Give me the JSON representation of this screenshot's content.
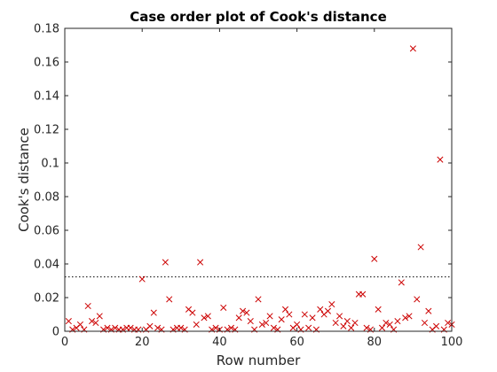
{
  "chart_data": {
    "type": "scatter",
    "title": "Case order plot of Cook's distance",
    "xlabel": "Row number",
    "ylabel": "Cook's distance",
    "xlim": [
      0,
      100
    ],
    "ylim": [
      0,
      0.18
    ],
    "xticks": [
      "0",
      "20",
      "40",
      "60",
      "80",
      "100"
    ],
    "yticks": [
      "0",
      "0.02",
      "0.04",
      "0.06",
      "0.08",
      "0.1",
      "0.12",
      "0.14",
      "0.16",
      "0.18"
    ],
    "grid": false,
    "marker": "x",
    "marker_color": "#cc0000",
    "threshold": 0.0323,
    "threshold_style": "dotted",
    "x": [
      1,
      2,
      3,
      4,
      5,
      6,
      7,
      8,
      9,
      10,
      11,
      12,
      13,
      14,
      15,
      16,
      17,
      18,
      19,
      20,
      21,
      22,
      23,
      24,
      25,
      26,
      27,
      28,
      29,
      30,
      31,
      32,
      33,
      34,
      35,
      36,
      37,
      38,
      39,
      40,
      41,
      42,
      43,
      44,
      45,
      46,
      47,
      48,
      49,
      50,
      51,
      52,
      53,
      54,
      55,
      56,
      57,
      58,
      59,
      60,
      61,
      62,
      63,
      64,
      65,
      66,
      67,
      68,
      69,
      70,
      71,
      72,
      73,
      74,
      75,
      76,
      77,
      78,
      79,
      80,
      81,
      82,
      83,
      84,
      85,
      86,
      87,
      88,
      89,
      90,
      91,
      92,
      93,
      94,
      95,
      96,
      97,
      98,
      99,
      100
    ],
    "y": [
      0.006,
      0.001,
      0.002,
      0.004,
      0.001,
      0.015,
      0.006,
      0.005,
      0.009,
      0.001,
      0.002,
      0.001,
      0.002,
      0.001,
      0.001,
      0.002,
      0.002,
      0.001,
      0.001,
      0.031,
      0.001,
      0.003,
      0.011,
      0.002,
      0.001,
      0.041,
      0.019,
      0.001,
      0.002,
      0.002,
      0.001,
      0.013,
      0.011,
      0.004,
      0.041,
      0.008,
      0.009,
      0.001,
      0.002,
      0.001,
      0.014,
      0.001,
      0.002,
      0.001,
      0.008,
      0.012,
      0.011,
      0.006,
      0.001,
      0.019,
      0.004,
      0.005,
      0.009,
      0.002,
      0.001,
      0.007,
      0.013,
      0.01,
      0.002,
      0.004,
      0.001,
      0.01,
      0.002,
      0.008,
      0.001,
      0.013,
      0.01,
      0.012,
      0.016,
      0.005,
      0.009,
      0.003,
      0.006,
      0.002,
      0.005,
      0.022,
      0.022,
      0.002,
      0.001,
      0.043,
      0.013,
      0.002,
      0.005,
      0.004,
      0.001,
      0.006,
      0.029,
      0.008,
      0.009,
      0.168,
      0.019,
      0.05,
      0.005,
      0.012,
      0.001,
      0.003,
      0.102,
      0.001,
      0.005,
      0.004
    ]
  }
}
